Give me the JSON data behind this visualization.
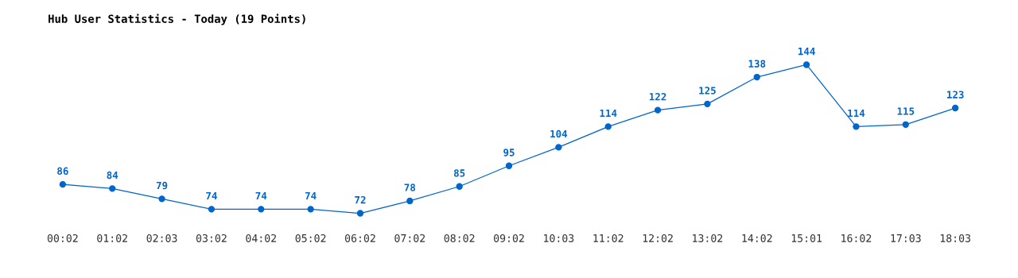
{
  "chart_data": {
    "type": "line",
    "title": "Hub User Statistics - Today (19 Points)",
    "categories": [
      "00:02",
      "01:02",
      "02:03",
      "03:02",
      "04:02",
      "05:02",
      "06:02",
      "07:02",
      "08:02",
      "09:02",
      "10:03",
      "11:02",
      "12:02",
      "13:02",
      "14:02",
      "15:01",
      "16:02",
      "17:03",
      "18:03"
    ],
    "series": [
      {
        "color": "#0066cc",
        "values": [
          86,
          84,
          79,
          74,
          74,
          74,
          72,
          78,
          85,
          95,
          104,
          114,
          122,
          125,
          138,
          144,
          114,
          115,
          123
        ]
      }
    ],
    "data_labels": true,
    "marker": "circle",
    "grid": false,
    "legend": false,
    "tick_labels": "x"
  }
}
